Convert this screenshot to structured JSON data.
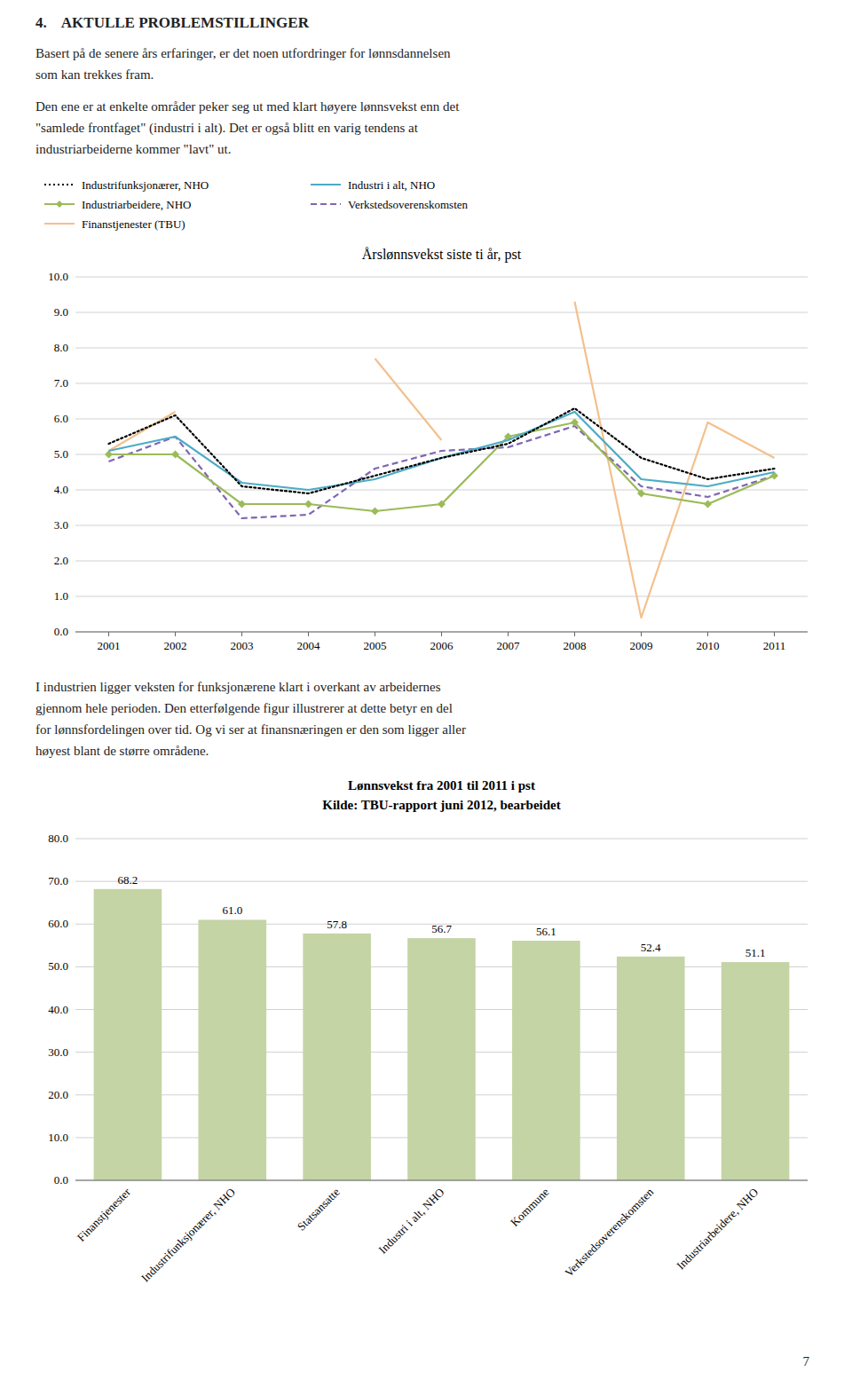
{
  "title": "4.    AKTULLE PROBLEMSTILLINGER",
  "paragraphs": [
    "Basert på de senere års erfaringer, er det noen utfordringer for lønnsdannelsen\nsom kan trekkes fram.",
    "Den ene er at enkelte områder peker seg ut med klart høyere lønnsvekst enn det\n\"samlede frontfaget\" (industri i alt). Det er også blitt en varig tendens at\nindustriarbeiderne kommer \"lavt\" ut.",
    "I industrien ligger veksten for funksjonærene klart i overkant av arbeidernes\ngjennom hele perioden. Den etterfølgende figur illustrerer at dette betyr en del\nfor lønnsfordelingen over tid. Og vi ser at finansnæringen er den som ligger aller\nhøyest blant de større områdene."
  ],
  "page_number": "7",
  "chart_data": [
    {
      "type": "line",
      "title": "Årslønnsvekst siste ti år, pst",
      "x": [
        2001,
        2002,
        2003,
        2004,
        2005,
        2006,
        2007,
        2008,
        2009,
        2010,
        2011
      ],
      "xlim": [
        2000.5,
        2011.5
      ],
      "xticks": [
        2001,
        2002,
        2003,
        2004,
        2005,
        2006,
        2007,
        2008,
        2009,
        2010,
        2011
      ],
      "ylim": [
        0.0,
        10.0
      ],
      "yticks": [
        {
          "value": 0,
          "label": "0.0"
        },
        {
          "value": 1,
          "label": "1.0"
        },
        {
          "value": 2,
          "label": "2.0"
        },
        {
          "value": 3,
          "label": "3.0"
        },
        {
          "value": 4,
          "label": "4.0"
        },
        {
          "value": 5,
          "label": "5.0"
        },
        {
          "value": 6,
          "label": "6.0"
        },
        {
          "value": 7,
          "label": "7.0"
        },
        {
          "value": 8,
          "label": "8.0"
        },
        {
          "value": 9,
          "label": "9.0"
        },
        {
          "value": 10,
          "label": "10.0"
        }
      ],
      "grid": true,
      "legend": "upper left",
      "series": [
        {
          "name": "Industrifunksjonærer, NHO",
          "color": "#000000",
          "line_style": "dotted",
          "values": [
            5.3,
            6.1,
            4.1,
            3.9,
            4.4,
            4.9,
            5.3,
            6.3,
            4.9,
            4.3,
            4.6
          ]
        },
        {
          "name": "Industri i alt, NHO",
          "color": "#4bacc6",
          "line_style": "solid",
          "values": [
            5.1,
            5.5,
            4.2,
            4.0,
            4.3,
            4.9,
            5.4,
            6.2,
            4.3,
            4.1,
            4.5
          ]
        },
        {
          "name": "Industriarbeidere, NHO",
          "color": "#9bbb59",
          "line_style": "solid",
          "marker": "diamond",
          "values": [
            5.0,
            5.0,
            3.6,
            3.6,
            3.4,
            3.6,
            5.5,
            5.9,
            3.9,
            3.6,
            4.4
          ]
        },
        {
          "name": "Verkstedsoverenskomsten",
          "color": "#7f66b3",
          "line_style": "dashed",
          "values": [
            4.8,
            5.5,
            3.2,
            3.3,
            4.6,
            5.1,
            5.2,
            5.8,
            4.1,
            3.8,
            4.4
          ]
        },
        {
          "name": "Finanstjenester (TBU)",
          "color": "#f4c08c",
          "line_style": "solid",
          "values": [
            5.1,
            6.2,
            null,
            null,
            7.7,
            5.4,
            null,
            9.3,
            0.4,
            5.9,
            4.9
          ]
        }
      ]
    },
    {
      "type": "bar",
      "title": "Lønnsvekst fra 2001 til 2011 i pst",
      "subtitle": "Kilde: TBU-rapport juni 2012, bearbeidet",
      "categories": [
        "Finanstjenester",
        "Industrifunksjonærer, NHO",
        "Statsansatte",
        "Industri i alt, NHO",
        "Kommune",
        "Verkstedsoverenskomsten",
        "Industriarbeidere, NHO"
      ],
      "values": [
        68.2,
        61.0,
        57.8,
        56.7,
        56.1,
        52.4,
        51.1
      ],
      "color": "#c4d4a5",
      "ylim": [
        0,
        80
      ],
      "yticks": [
        {
          "value": 0,
          "label": "0.0"
        },
        {
          "value": 10,
          "label": "10.0"
        },
        {
          "value": 20,
          "label": "20.0"
        },
        {
          "value": 30,
          "label": "30.0"
        },
        {
          "value": 40,
          "label": "40.0"
        },
        {
          "value": 50,
          "label": "50.0"
        },
        {
          "value": 60,
          "label": "60.0"
        },
        {
          "value": 70,
          "label": "70.0"
        },
        {
          "value": 80,
          "label": "80.0"
        }
      ],
      "grid": true,
      "data_labels": true
    }
  ]
}
